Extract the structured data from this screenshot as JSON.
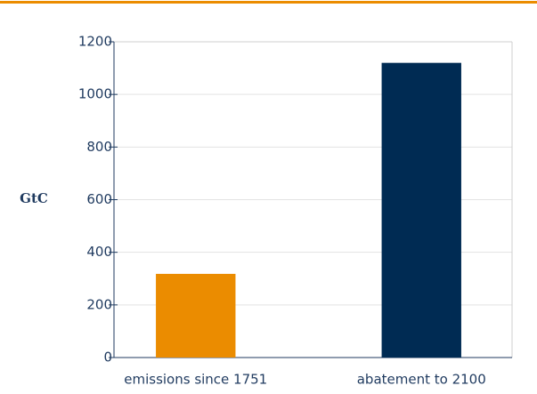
{
  "chart_data": {
    "type": "bar",
    "ylabel": "GtC",
    "categories": [
      "emissions since 1751",
      "abatement to 2100"
    ],
    "values": [
      318,
      1120
    ],
    "colors": [
      "#eb8c00",
      "#002b53"
    ],
    "ylim": [
      0,
      1200
    ],
    "yticks": [
      0,
      200,
      400,
      600,
      800,
      1000,
      1200
    ],
    "grid": true
  }
}
